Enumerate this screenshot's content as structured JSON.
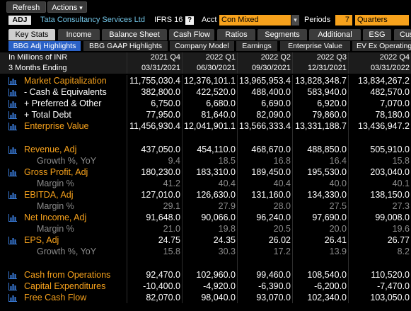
{
  "toolbar": {
    "refresh_label": "Refresh",
    "actions_label": "Actions",
    "actions_caret": "▾"
  },
  "security": {
    "badge": "ADJ",
    "name": "Tata Consultancy Services Ltd",
    "standard": "IFRS 16",
    "help": "?",
    "acct_label": "Acct",
    "acct_value": "Con Mixed",
    "acct_caret": "▾",
    "periods_label": "Periods",
    "periods_value": "7",
    "periods_unit": "Quarters"
  },
  "tabs": [
    {
      "label": "Key Stats",
      "selected": true
    },
    {
      "label": "Income"
    },
    {
      "label": "Balance Sheet"
    },
    {
      "label": "Cash Flow"
    },
    {
      "label": "Ratios"
    },
    {
      "label": "Segments"
    },
    {
      "label": "Additional"
    },
    {
      "label": "ESG"
    },
    {
      "label": "Cus"
    }
  ],
  "subtabs": [
    {
      "label": "BBG Adj Highlights",
      "selected": true
    },
    {
      "label": "BBG GAAP Highlights"
    },
    {
      "label": "Company Model"
    },
    {
      "label": "Earnings"
    },
    {
      "label": "Enterprise Value"
    },
    {
      "label": "EV Ex Operating"
    }
  ],
  "table": {
    "units_label": "In Millions of INR",
    "period_label": "3 Months Ending",
    "columns": [
      {
        "period": "2021 Q4",
        "date": "03/31/2021"
      },
      {
        "period": "2022 Q1",
        "date": "06/30/2021"
      },
      {
        "period": "2022 Q2",
        "date": "09/30/2021"
      },
      {
        "period": "2022 Q3",
        "date": "12/31/2021"
      },
      {
        "period": "2022 Q4",
        "date": "03/31/2022"
      }
    ],
    "rows": [
      {
        "label": "Market Capitalization",
        "icon": "bar-chart-icon",
        "label_color": "#f7a21c",
        "value_color": "#ffffff",
        "values": [
          "11,755,030.4",
          "12,376,101.1",
          "13,965,953.4",
          "13,828,348.7",
          "13,834,267.2"
        ]
      },
      {
        "label": "- Cash & Equivalents",
        "icon": "bar-chart-icon",
        "label_color": "#ffffff",
        "value_color": "#ffffff",
        "values": [
          "382,800.0",
          "422,520.0",
          "488,400.0",
          "583,940.0",
          "482,570.0"
        ]
      },
      {
        "label": "+ Preferred & Other",
        "icon": "bar-chart-icon",
        "label_color": "#ffffff",
        "value_color": "#ffffff",
        "values": [
          "6,750.0",
          "6,680.0",
          "6,690.0",
          "6,920.0",
          "7,070.0"
        ]
      },
      {
        "label": "+ Total Debt",
        "icon": "bar-chart-icon",
        "label_color": "#ffffff",
        "value_color": "#ffffff",
        "values": [
          "77,950.0",
          "81,640.0",
          "82,090.0",
          "79,860.0",
          "78,180.0"
        ]
      },
      {
        "label": "Enterprise Value",
        "icon": "bar-chart-icon",
        "label_color": "#f7a21c",
        "value_color": "#ffffff",
        "values": [
          "11,456,930.4",
          "12,041,901.1",
          "13,566,333.4",
          "13,331,188.7",
          "13,436,947.2"
        ]
      },
      {
        "blank": true
      },
      {
        "label": "Revenue, Adj",
        "icon": "bar-chart-icon",
        "label_color": "#f7a21c",
        "value_color": "#ffffff",
        "values": [
          "437,050.0",
          "454,110.0",
          "468,670.0",
          "488,850.0",
          "505,910.0"
        ]
      },
      {
        "label": "Growth %, YoY",
        "sub": true,
        "label_color": "#8c8c8c",
        "value_color": "#8c8c8c",
        "values": [
          "9.4",
          "18.5",
          "16.8",
          "16.4",
          "15.8"
        ]
      },
      {
        "label": "Gross Profit, Adj",
        "icon": "bar-chart-icon",
        "label_color": "#f7a21c",
        "value_color": "#ffffff",
        "values": [
          "180,230.0",
          "183,310.0",
          "189,450.0",
          "195,530.0",
          "203,040.0"
        ]
      },
      {
        "label": "Margin %",
        "sub": true,
        "label_color": "#8c8c8c",
        "value_color": "#8c8c8c",
        "values": [
          "41.2",
          "40.4",
          "40.4",
          "40.0",
          "40.1"
        ]
      },
      {
        "label": "EBITDA, Adj",
        "icon": "bar-chart-icon",
        "label_color": "#f7a21c",
        "value_color": "#ffffff",
        "values": [
          "127,010.0",
          "126,630.0",
          "131,160.0",
          "134,330.0",
          "138,150.0"
        ]
      },
      {
        "label": "Margin %",
        "sub": true,
        "label_color": "#8c8c8c",
        "value_color": "#8c8c8c",
        "values": [
          "29.1",
          "27.9",
          "28.0",
          "27.5",
          "27.3"
        ]
      },
      {
        "label": "Net Income, Adj",
        "icon": "bar-chart-icon",
        "label_color": "#f7a21c",
        "value_color": "#ffffff",
        "values": [
          "91,648.0",
          "90,066.0",
          "96,240.0",
          "97,690.0",
          "99,008.0"
        ]
      },
      {
        "label": "Margin %",
        "sub": true,
        "label_color": "#8c8c8c",
        "value_color": "#8c8c8c",
        "values": [
          "21.0",
          "19.8",
          "20.5",
          "20.0",
          "19.6"
        ]
      },
      {
        "label": "EPS, Adj",
        "icon": "bar-chart-icon",
        "label_color": "#f7a21c",
        "value_color": "#ffffff",
        "values": [
          "24.75",
          "24.35",
          "26.02",
          "26.41",
          "26.77"
        ]
      },
      {
        "label": "Growth %, YoY",
        "sub": true,
        "label_color": "#8c8c8c",
        "value_color": "#8c8c8c",
        "values": [
          "15.8",
          "30.3",
          "17.2",
          "13.9",
          "8.2"
        ]
      },
      {
        "blank": true
      },
      {
        "label": "Cash from Operations",
        "icon": "bar-chart-icon",
        "label_color": "#f7a21c",
        "value_color": "#ffffff",
        "values": [
          "92,470.0",
          "102,960.0",
          "99,460.0",
          "108,540.0",
          "110,520.0"
        ]
      },
      {
        "label": "Capital Expenditures",
        "icon": "bar-chart-icon",
        "label_color": "#f7a21c",
        "value_color": "#ffffff",
        "values": [
          "-10,400.0",
          "-4,920.0",
          "-6,390.0",
          "-6,200.0",
          "-7,470.0"
        ]
      },
      {
        "label": "Free Cash Flow",
        "icon": "bar-chart-icon",
        "label_color": "#f7a21c",
        "value_color": "#ffffff",
        "values": [
          "82,070.0",
          "98,040.0",
          "93,070.0",
          "102,340.0",
          "103,050.0"
        ]
      }
    ]
  },
  "colors": {
    "amber": "#f7a21c",
    "icon_blue": "#3a7ddb",
    "selected_subtab": "#2b62c7",
    "security_name": "#73c6e8"
  }
}
